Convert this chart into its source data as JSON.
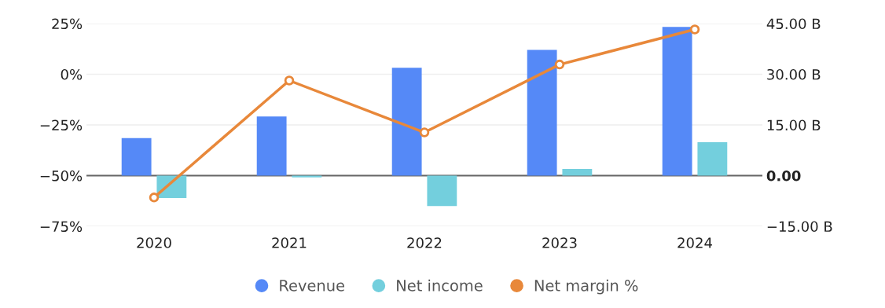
{
  "chart_data": {
    "type": "bar",
    "categories": [
      "2020",
      "2021",
      "2022",
      "2023",
      "2024"
    ],
    "series": [
      {
        "name": "Revenue",
        "axis": "y2",
        "color": "#5589f7",
        "values": [
          11.1,
          17.5,
          31.9,
          37.2,
          44.0
        ]
      },
      {
        "name": "Net income",
        "axis": "y2",
        "color": "#73cfdd",
        "values": [
          -6.6,
          -0.5,
          -9.0,
          2.0,
          9.9
        ]
      },
      {
        "name": "Net margin %",
        "type": "line",
        "axis": "y",
        "color": "#e8883a",
        "marker": "circle",
        "values": [
          -60.8,
          -3.1,
          -28.7,
          4.8,
          22.1
        ]
      }
    ],
    "ylim": [
      -75,
      25
    ],
    "yticks": [
      {
        "value": -75,
        "label": "−75%"
      },
      {
        "value": -50,
        "label": "−50%"
      },
      {
        "value": -25,
        "label": "−25%"
      },
      {
        "value": 0,
        "label": "0%"
      },
      {
        "value": 25,
        "label": "25%"
      }
    ],
    "y2lim": [
      -15,
      45
    ],
    "y2ticks": [
      {
        "value": -15,
        "label": "−15.00 B"
      },
      {
        "value": 0,
        "label": "0.00"
      },
      {
        "value": 15,
        "label": "15.00 B"
      },
      {
        "value": 30,
        "label": "30.00 B"
      },
      {
        "value": 45,
        "label": "45.00 B"
      }
    ],
    "ref_lines": [
      {
        "axis": "y2",
        "value": 0,
        "color": "#666666"
      }
    ],
    "grid": "y",
    "legend": "bottom"
  }
}
